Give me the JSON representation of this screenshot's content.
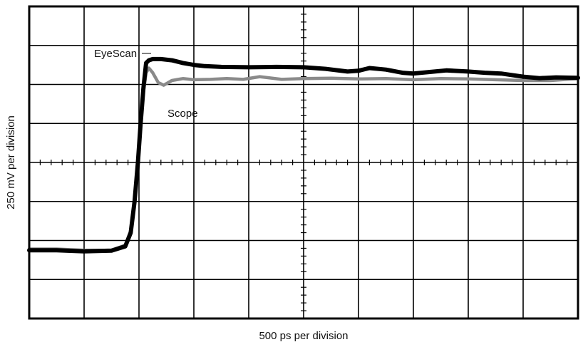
{
  "chart_data": {
    "type": "line",
    "title": "",
    "xlabel": "500 ps per division",
    "ylabel": "250 mV per division",
    "x_divisions": 10,
    "y_divisions": 8,
    "xlim": [
      0,
      10
    ],
    "ylim": [
      0,
      8
    ],
    "grid": true,
    "colors": {
      "eyescan": "#000000",
      "scope": "#8a8a8a",
      "grid": "#000000"
    },
    "annotations": [
      {
        "text": "EyeScan",
        "target": "eyescan"
      },
      {
        "text": "Scope",
        "target": "scope"
      }
    ],
    "series": [
      {
        "name": "EyeScan",
        "x": [
          0,
          0.5,
          1.0,
          1.5,
          1.75,
          1.85,
          1.92,
          1.98,
          2.03,
          2.08,
          2.13,
          2.18,
          2.25,
          2.4,
          2.6,
          2.8,
          3.0,
          3.2,
          3.5,
          4.0,
          4.5,
          5.0,
          5.4,
          5.8,
          6.0,
          6.2,
          6.5,
          6.8,
          7.0,
          7.3,
          7.6,
          8.0,
          8.3,
          8.6,
          9.0,
          9.3,
          9.6,
          10.0
        ],
        "y": [
          1.75,
          1.75,
          1.72,
          1.74,
          1.85,
          2.2,
          3.0,
          4.0,
          5.0,
          5.9,
          6.55,
          6.62,
          6.65,
          6.65,
          6.62,
          6.55,
          6.5,
          6.47,
          6.45,
          6.44,
          6.45,
          6.44,
          6.4,
          6.33,
          6.35,
          6.42,
          6.38,
          6.3,
          6.28,
          6.32,
          6.36,
          6.33,
          6.3,
          6.28,
          6.2,
          6.16,
          6.18,
          6.17
        ]
      },
      {
        "name": "Scope",
        "x": [
          0,
          0.5,
          1.0,
          1.5,
          1.75,
          1.85,
          1.92,
          1.98,
          2.03,
          2.08,
          2.13,
          2.18,
          2.25,
          2.35,
          2.45,
          2.6,
          2.8,
          3.0,
          3.3,
          3.6,
          3.9,
          4.2,
          4.6,
          5.0,
          5.5,
          6.0,
          6.5,
          7.0,
          7.5,
          8.0,
          8.5,
          9.0,
          9.5,
          10.0
        ],
        "y": [
          1.78,
          1.78,
          1.75,
          1.75,
          1.88,
          2.25,
          3.05,
          4.05,
          5.0,
          5.8,
          6.3,
          6.42,
          6.3,
          6.05,
          5.98,
          6.1,
          6.15,
          6.12,
          6.13,
          6.15,
          6.13,
          6.2,
          6.13,
          6.15,
          6.16,
          6.14,
          6.15,
          6.12,
          6.15,
          6.14,
          6.12,
          6.1,
          6.1,
          6.15
        ]
      }
    ]
  }
}
